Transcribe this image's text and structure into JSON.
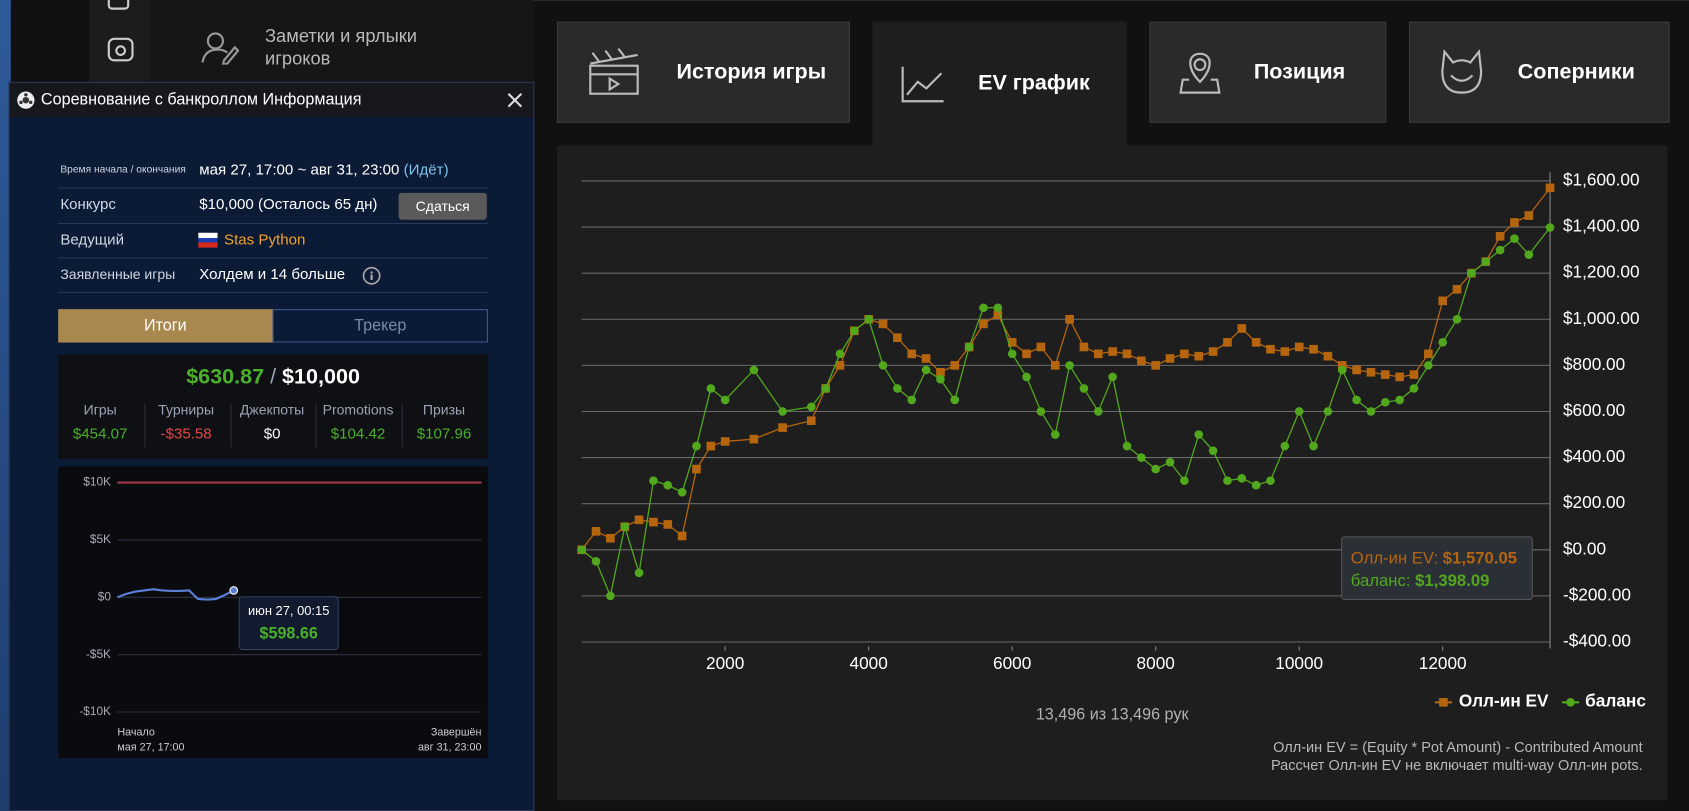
{
  "sidebar": {
    "menu_item": "Заметки и ярлыки игроков"
  },
  "panel": {
    "title": "Соревнование с банкроллом Информация",
    "rows": [
      {
        "label": "Время начала / окончания",
        "value": "мая 27, 17:00 ~ авг 31, 23:00",
        "status": "(Идёт)"
      },
      {
        "label": "Конкурс",
        "value": "$10,000 (Осталось 65 дн)",
        "button": "Сдаться"
      },
      {
        "label": "Ведущий",
        "value": "Stas Python"
      },
      {
        "label": "Заявленные игры",
        "value": "Холдем и 14 больше"
      }
    ],
    "tabs": [
      "Итоги",
      "Трекер"
    ],
    "summary": {
      "total": "$630.87",
      "separator": "/",
      "goal": "$10,000",
      "items": [
        {
          "label": "Игры",
          "value": "$454.07",
          "color": "#4caf2a"
        },
        {
          "label": "Турниры",
          "value": "-$35.58",
          "color": "#e04848"
        },
        {
          "label": "Джекпоты",
          "value": "$0",
          "color": "#ffffff"
        },
        {
          "label": "Promotions",
          "value": "$104.42",
          "color": "#4caf2a"
        },
        {
          "label": "Призы",
          "value": "$107.96",
          "color": "#4caf2a"
        }
      ]
    },
    "mini_chart": {
      "type": "line",
      "ylim": [
        -10000,
        10000
      ],
      "yticks": [
        {
          "value": 10000,
          "label": "$10K"
        },
        {
          "value": 5000,
          "label": "$5K"
        },
        {
          "value": 0,
          "label": "$0"
        },
        {
          "value": -5000,
          "label": "-$5K"
        },
        {
          "value": -10000,
          "label": "-$10K"
        }
      ],
      "target": 10000,
      "target_color": "#a23a4a",
      "series": [
        {
          "color": "#5b7fd6",
          "values": [
            0,
            300,
            500,
            600,
            700,
            600,
            550,
            550,
            600,
            -150,
            -200,
            -150,
            200,
            598.66
          ]
        }
      ],
      "tooltip": {
        "date": "июн 27, 00:15",
        "value": 598.66,
        "value_label": "$598.66"
      },
      "start": {
        "label": "Начало",
        "date": "мая 27, 17:00"
      },
      "end": {
        "label": "Завершён",
        "date": "авг 31, 23:00"
      }
    }
  },
  "tabs": [
    "История игры",
    "EV график",
    "Позиция",
    "Соперники"
  ],
  "chart_data": {
    "type": "line",
    "xlim": [
      0,
      13496
    ],
    "xticks": [
      2000,
      4000,
      6000,
      8000,
      10000,
      12000
    ],
    "ylim": [
      -400,
      1600
    ],
    "yticks": [
      {
        "value": 1600,
        "label": "$1,600.00"
      },
      {
        "value": 1400,
        "label": "$1,400.00"
      },
      {
        "value": 1200,
        "label": "$1,200.00"
      },
      {
        "value": 1000,
        "label": "$1,000.00"
      },
      {
        "value": 800,
        "label": "$800.00"
      },
      {
        "value": 600,
        "label": "$600.00"
      },
      {
        "value": 400,
        "label": "$400.00"
      },
      {
        "value": 200,
        "label": "$200.00"
      },
      {
        "value": 0,
        "label": "$0.00"
      },
      {
        "value": -200,
        "label": "-$200.00"
      },
      {
        "value": -400,
        "label": "-$400.00"
      }
    ],
    "grid": true,
    "x": [
      0,
      200,
      400,
      600,
      800,
      1000,
      1200,
      1400,
      1600,
      1800,
      2000,
      2400,
      2800,
      3200,
      3400,
      3600,
      3800,
      4000,
      4200,
      4400,
      4600,
      4800,
      5000,
      5200,
      5400,
      5600,
      5800,
      6000,
      6200,
      6400,
      6600,
      6800,
      7000,
      7200,
      7400,
      7600,
      7800,
      8000,
      8200,
      8400,
      8600,
      8800,
      9000,
      9200,
      9400,
      9600,
      9800,
      10000,
      10200,
      10400,
      10600,
      10800,
      11000,
      11200,
      11400,
      11600,
      11800,
      12000,
      12200,
      12400,
      12600,
      12800,
      13000,
      13200,
      13496
    ],
    "series": [
      {
        "name": "Олл-ин EV",
        "color": "#b5650d",
        "marker": "square",
        "values": [
          0,
          80,
          50,
          100,
          130,
          120,
          110,
          60,
          350,
          450,
          470,
          480,
          530,
          560,
          700,
          800,
          950,
          1000,
          980,
          920,
          850,
          830,
          770,
          800,
          880,
          980,
          1020,
          900,
          850,
          880,
          800,
          1000,
          880,
          850,
          860,
          850,
          820,
          800,
          830,
          850,
          840,
          860,
          900,
          960,
          900,
          870,
          860,
          880,
          870,
          840,
          800,
          780,
          770,
          760,
          750,
          760,
          850,
          1080,
          1130,
          1200,
          1250,
          1360,
          1420,
          1450,
          1570.05
        ]
      },
      {
        "name": "баланс",
        "color": "#52a81c",
        "marker": "circle",
        "values": [
          0,
          -50,
          -200,
          100,
          -100,
          300,
          280,
          250,
          450,
          700,
          650,
          780,
          600,
          620,
          700,
          850,
          950,
          1000,
          800,
          700,
          650,
          780,
          740,
          650,
          880,
          1050,
          1050,
          850,
          750,
          600,
          500,
          800,
          700,
          600,
          750,
          450,
          400,
          350,
          380,
          300,
          500,
          430,
          300,
          310,
          280,
          300,
          450,
          600,
          450,
          600,
          780,
          650,
          600,
          640,
          650,
          700,
          800,
          900,
          1000,
          1200,
          1250,
          1300,
          1350,
          1280,
          1398.09
        ]
      }
    ],
    "tooltip": [
      {
        "label": "Олл-ин EV:",
        "value": "$1,570.05"
      },
      {
        "label": "баланс:",
        "value": "$1,398.09"
      }
    ],
    "footer": "13,496 из 13,496 рук",
    "notes": [
      "Олл-ин EV = (Equity * Pot Amount) - Contributed Amount",
      "Рассчет Олл-ин EV не включает multi-way Олл-ин pots."
    ]
  }
}
